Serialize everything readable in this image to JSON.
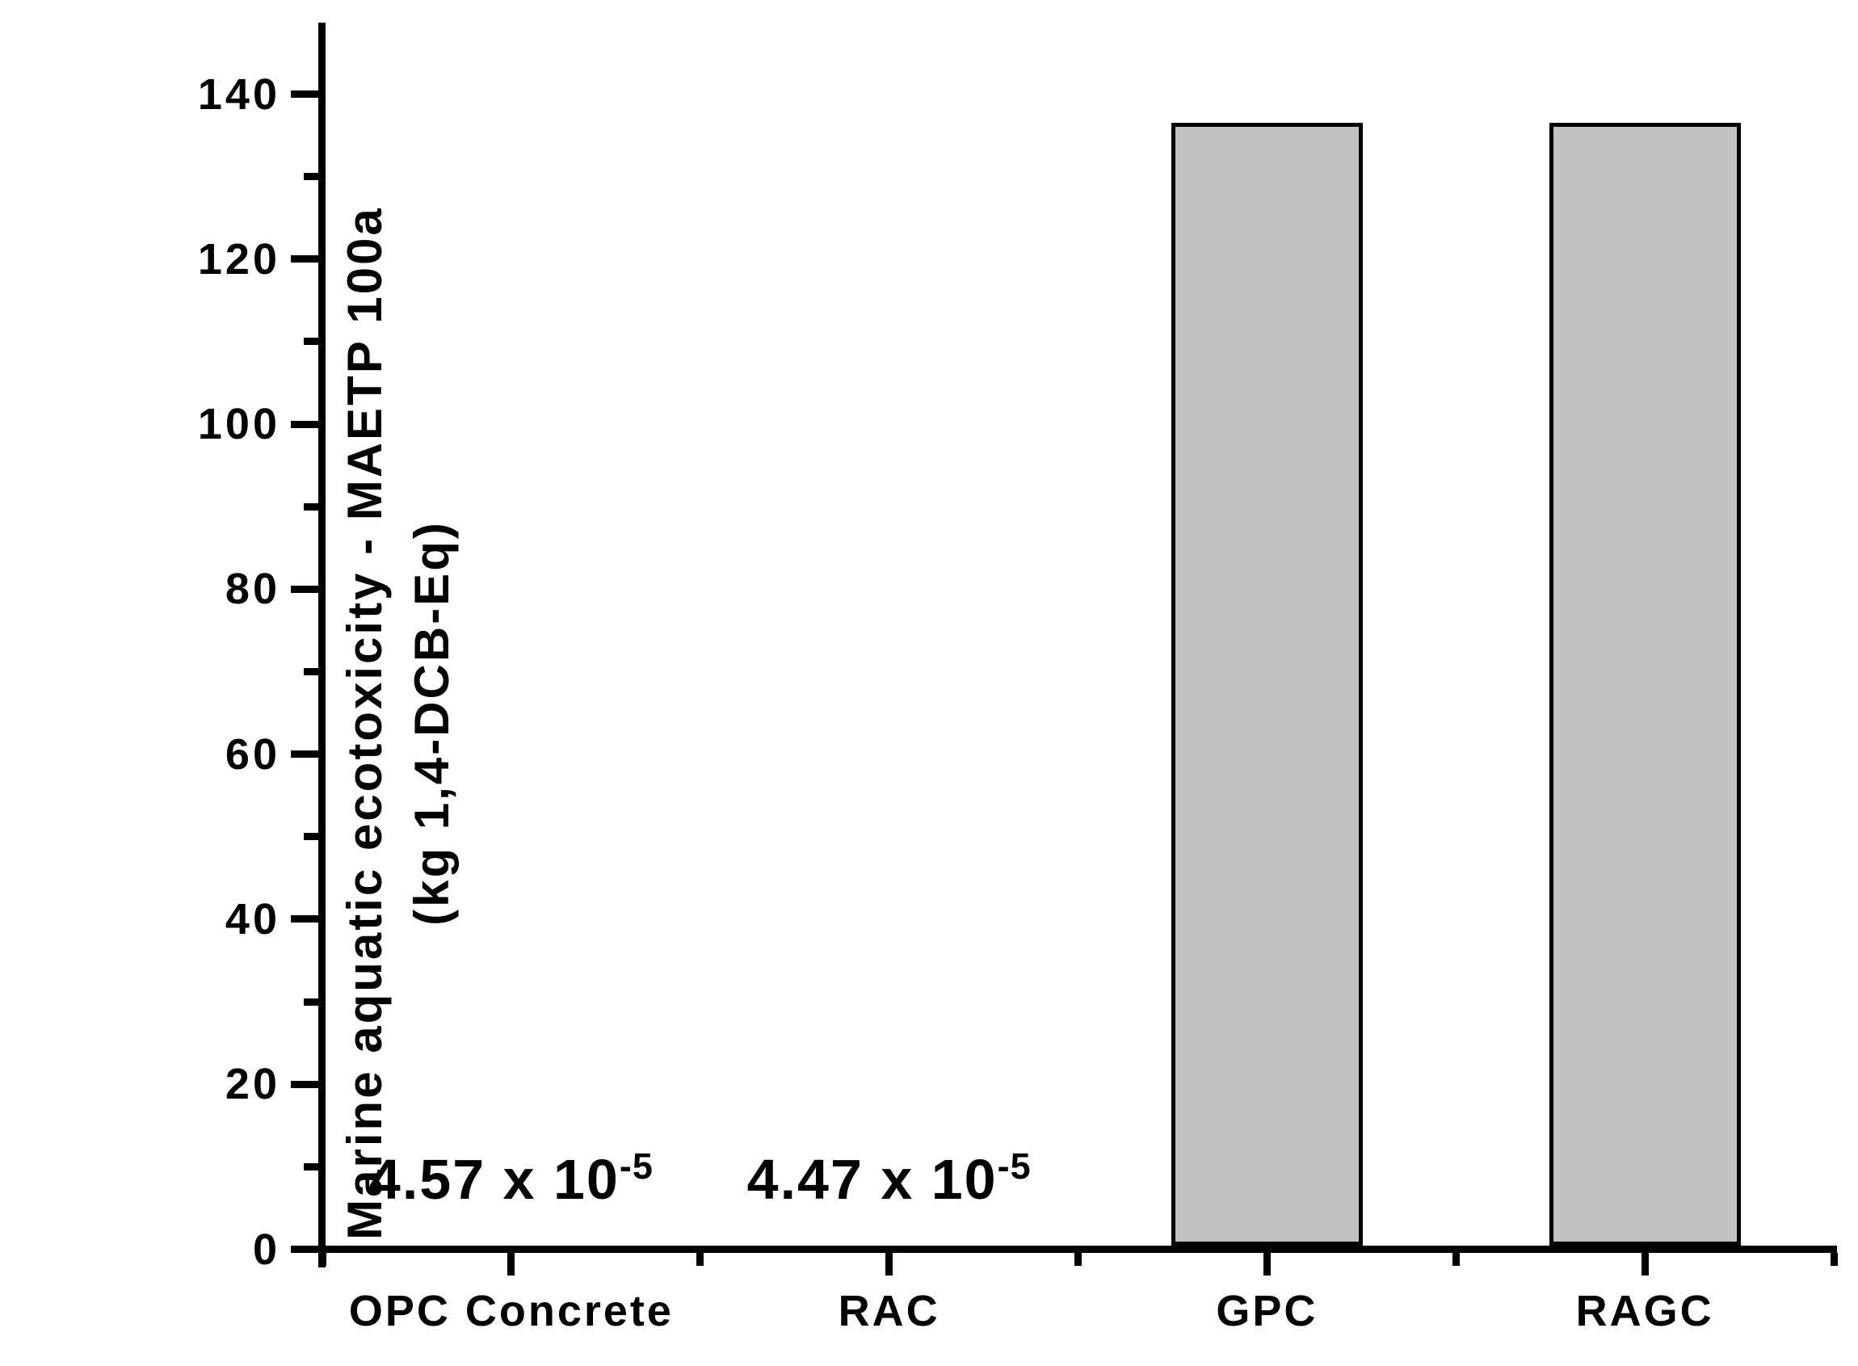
{
  "chart_data": {
    "type": "bar",
    "title": "",
    "categories": [
      "OPC Concrete",
      "RAC",
      "GPC",
      "RAGC"
    ],
    "values": [
      4.57e-05,
      4.47e-05,
      136.5,
      136.5
    ],
    "bar_labels": [
      {
        "base": "4.57 x 10",
        "exp": "-5"
      },
      {
        "base": "4.47 x 10",
        "exp": "-5"
      },
      null,
      null
    ],
    "xlabel": "",
    "ylabel_line1": "Marine aquatic ecotoxicity - MAETP 100a",
    "ylabel_line2": "(kg 1,4-DCB-Eq)",
    "ylim": [
      0,
      150
    ],
    "ytick_major": [
      0,
      20,
      40,
      60,
      80,
      100,
      120,
      140
    ],
    "ytick_labels": [
      "0",
      "20",
      "40",
      "60",
      "80",
      "100",
      "120",
      "140"
    ],
    "ytick_minor": [
      10,
      30,
      50,
      70,
      90,
      110,
      130
    ],
    "grid": false,
    "legend": "none",
    "colors": {
      "bar_fill": "#c1c1c1",
      "bar_border": "#000000",
      "axis": "#000000",
      "text": "#000000"
    }
  }
}
